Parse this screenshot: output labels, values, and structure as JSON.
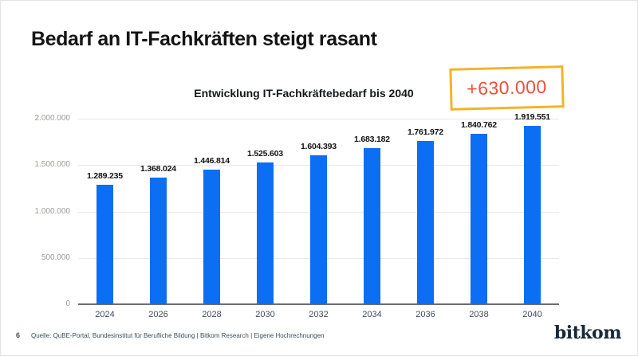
{
  "slide": {
    "title": "Bedarf an IT-Fachkräften steigt rasant",
    "page_number": "6",
    "source": "Quelle: QuBE-Portal, Bundesinstitut für Berufliche Bildung | Bitkom Research | Eigene Hochrechnungen",
    "logo_text": "bitkom",
    "logo_color": "#15293a"
  },
  "annotation": {
    "label": "+630.000",
    "border_color": "#F3B32A",
    "text_color": "#E8513D"
  },
  "chart_data": {
    "type": "bar",
    "title": "Entwicklung IT-Fachkräftebedarf bis 2040",
    "xlabel": "",
    "ylabel": "",
    "categories": [
      "2024",
      "2026",
      "2028",
      "2030",
      "2032",
      "2034",
      "2036",
      "2038",
      "2040"
    ],
    "values": [
      1289235,
      1368024,
      1446814,
      1525603,
      1604393,
      1683182,
      1761972,
      1840762,
      1919551
    ],
    "value_labels": [
      "1.289.235",
      "1.368.024",
      "1.446.814",
      "1.525.603",
      "1.604.393",
      "1.683.182",
      "1.761.972",
      "1.840.762",
      "1.919.551"
    ],
    "ylim": [
      0,
      2000000
    ],
    "y_ticks": [
      {
        "value": 0,
        "label": "0"
      },
      {
        "value": 500000,
        "label": "500.000"
      },
      {
        "value": 1000000,
        "label": "1.000.000"
      },
      {
        "value": 1500000,
        "label": "1.500.000"
      },
      {
        "value": 2000000,
        "label": "2.000.000"
      }
    ],
    "grid": true,
    "legend": "none",
    "bar_color": "#0C6EF2",
    "gridline_color": "#e8e8e8",
    "axis_line_color": "#6e6e6e"
  }
}
